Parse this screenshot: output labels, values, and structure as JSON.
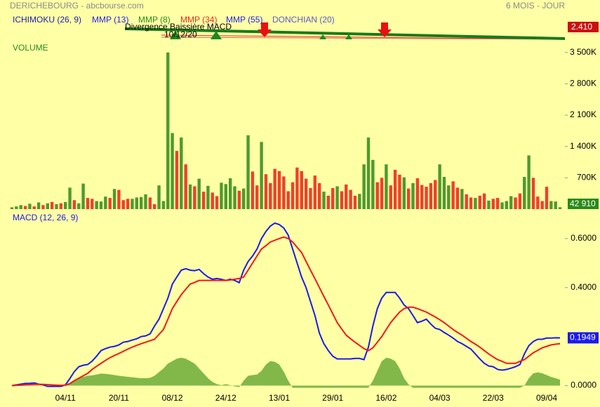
{
  "header": {
    "title": "DERICHEBOURG - abcbourse.com",
    "period": "6 MOIS - JOUR",
    "indicators": [
      {
        "label": "ICHIMOKU (26, 9)",
        "color": "#1c1cb0"
      },
      {
        "label": "MMP (13)",
        "color": "#2222ee"
      },
      {
        "label": "MMP (8)",
        "color": "#2a8a1a"
      },
      {
        "label": "MMP (34)",
        "color": "#e03020"
      },
      {
        "label": "MMP (55)",
        "color": "#2222ee"
      },
      {
        "label": "DONCHIAN (20)",
        "color": "#5a5ad0"
      }
    ]
  },
  "price_panel": {
    "annotation": "Divergence Baissière MACD",
    "annotation_date": "10/12/20",
    "last_label": "2.410"
  },
  "chart_data": [
    {
      "type": "bar",
      "title": "VOLUME",
      "values": [
        40000,
        60000,
        90000,
        70000,
        120000,
        60000,
        150000,
        90000,
        130000,
        160000,
        110000,
        130000,
        160000,
        480000,
        200000,
        130000,
        570000,
        250000,
        230000,
        180000,
        170000,
        280000,
        250000,
        450000,
        430000,
        200000,
        230000,
        230000,
        260000,
        270000,
        330000,
        260000,
        110000,
        530000,
        180000,
        3500000,
        1700000,
        1300000,
        1600000,
        1000000,
        550000,
        510000,
        680000,
        390000,
        520000,
        370000,
        290000,
        590000,
        560000,
        690000,
        510000,
        410000,
        460000,
        1650000,
        840000,
        530000,
        1500000,
        780000,
        580000,
        900000,
        850000,
        730000,
        400000,
        600000,
        930000,
        850000,
        680000,
        470000,
        750000,
        580000,
        390000,
        300000,
        470000,
        510000,
        400000,
        550000,
        430000,
        300000,
        340000,
        1000000,
        1600000,
        1100000,
        600000,
        700000,
        1000000,
        530000,
        880000,
        770000,
        710000,
        460000,
        580000,
        690000,
        540000,
        500000,
        580000,
        650000,
        1000000,
        720000,
        530000,
        620000,
        480000,
        450000,
        330000,
        260000,
        250000,
        300000,
        350000,
        190000,
        230000,
        250000,
        150000,
        180000,
        290000,
        260000,
        350000,
        720000,
        1200000,
        700000,
        280000,
        180000,
        500000,
        180000,
        170000,
        42910
      ],
      "colors": [
        "#4e9a2e",
        "#4e9a2e",
        "#4e9a2e",
        "#f0402c",
        "#4e9a2e",
        "#f0402c",
        "#4e9a2e",
        "#f0402c",
        "#4e9a2e",
        "#f0402c",
        "#4e9a2e",
        "#f0402c",
        "#4e9a2e",
        "#4e9a2e",
        "#f0402c",
        "#4e9a2e",
        "#4e9a2e",
        "#f0402c",
        "#f0402c",
        "#4e9a2e",
        "#4e9a2e",
        "#4e9a2e",
        "#f0402c",
        "#4e9a2e",
        "#f0402c",
        "#f0402c",
        "#f0402c",
        "#4e9a2e",
        "#4e9a2e",
        "#4e9a2e",
        "#4e9a2e",
        "#f0402c",
        "#f0402c",
        "#4e9a2e",
        "#4e9a2e",
        "#4e9a2e",
        "#4e9a2e",
        "#f0402c",
        "#4e9a2e",
        "#f0402c",
        "#4e9a2e",
        "#f0402c",
        "#4e9a2e",
        "#f0402c",
        "#4e9a2e",
        "#f0402c",
        "#f0402c",
        "#4e9a2e",
        "#4e9a2e",
        "#4e9a2e",
        "#4e9a2e",
        "#f0402c",
        "#4e9a2e",
        "#4e9a2e",
        "#f0402c",
        "#f0402c",
        "#4e9a2e",
        "#f0402c",
        "#f0402c",
        "#f0402c",
        "#f0402c",
        "#f0402c",
        "#f0402c",
        "#f0402c",
        "#f0402c",
        "#f0402c",
        "#f0402c",
        "#f0402c",
        "#f0402c",
        "#f0402c",
        "#4e9a2e",
        "#f0402c",
        "#f0402c",
        "#4e9a2e",
        "#f0402c",
        "#f0402c",
        "#f0402c",
        "#f0402c",
        "#4e9a2e",
        "#4e9a2e",
        "#4e9a2e",
        "#4e9a2e",
        "#f0402c",
        "#f0402c",
        "#4e9a2e",
        "#f0402c",
        "#f0402c",
        "#f0402c",
        "#4e9a2e",
        "#f0402c",
        "#4e9a2e",
        "#f0402c",
        "#f0402c",
        "#f0402c",
        "#f0402c",
        "#f0402c",
        "#4e9a2e",
        "#4e9a2e",
        "#4e9a2e",
        "#f0402c",
        "#f0402c",
        "#4e9a2e",
        "#f0402c",
        "#f0402c",
        "#4e9a2e",
        "#f0402c",
        "#f0402c",
        "#4e9a2e",
        "#f0402c",
        "#f0402c",
        "#4e9a2e",
        "#4e9a2e",
        "#4e9a2e",
        "#f0402c",
        "#f0402c",
        "#4e9a2e",
        "#4e9a2e",
        "#f0402c",
        "#f0402c",
        "#f0402c",
        "#f0402c",
        "#4e9a2e",
        "#4e9a2e",
        "#4e9a2e"
      ],
      "ylim": [
        0,
        3700000
      ],
      "yticks": [
        {
          "value": 700000,
          "label": "700K"
        },
        {
          "value": 1400000,
          "label": "1 400K"
        },
        {
          "value": 2100000,
          "label": "2 100K"
        },
        {
          "value": 2800000,
          "label": "2 800K"
        },
        {
          "value": 3500000,
          "label": "3 500K"
        }
      ],
      "last_label": "42 910",
      "last_color": "#2a8a1a"
    },
    {
      "type": "line",
      "title": "MACD (12, 26, 9)",
      "categories": [
        null,
        null,
        null,
        null,
        null,
        null,
        null,
        null,
        null,
        null,
        null,
        null,
        "04/11",
        null,
        null,
        null,
        null,
        null,
        null,
        null,
        null,
        null,
        null,
        null,
        "20/11",
        null,
        null,
        null,
        null,
        null,
        null,
        null,
        null,
        null,
        null,
        null,
        "08/12",
        null,
        null,
        null,
        null,
        null,
        null,
        null,
        null,
        null,
        null,
        null,
        "24/12",
        null,
        null,
        null,
        null,
        null,
        null,
        null,
        null,
        null,
        null,
        null,
        "13/01",
        null,
        null,
        null,
        null,
        null,
        null,
        null,
        null,
        null,
        null,
        null,
        "29/01",
        null,
        null,
        null,
        null,
        null,
        null,
        null,
        null,
        null,
        null,
        null,
        "16/02",
        null,
        null,
        null,
        null,
        null,
        null,
        null,
        null,
        null,
        null,
        null,
        "04/03",
        null,
        null,
        null,
        null,
        null,
        null,
        null,
        null,
        null,
        null,
        null,
        "22/03",
        null,
        null,
        null,
        null,
        null,
        null,
        null,
        null,
        null,
        null,
        null,
        "09/04",
        null,
        null,
        null
      ],
      "series": [
        {
          "color": "#1a1aee",
          "values": [
            0,
            0.003,
            0.006,
            0.009,
            0.009,
            0.011,
            0.006,
            0.003,
            -0.003,
            -0.003,
            -0.003,
            -0.003,
            0.003,
            0.029,
            0.057,
            0.077,
            0.083,
            0.086,
            0.1,
            0.12,
            0.143,
            0.151,
            0.157,
            0.16,
            0.166,
            0.177,
            0.18,
            0.186,
            0.191,
            0.2,
            0.203,
            0.211,
            0.243,
            0.271,
            0.314,
            0.357,
            0.414,
            0.443,
            0.471,
            0.477,
            0.471,
            0.469,
            0.474,
            0.457,
            0.443,
            0.434,
            0.437,
            0.434,
            0.429,
            0.434,
            0.429,
            0.42,
            0.471,
            0.506,
            0.529,
            0.557,
            0.6,
            0.629,
            0.651,
            0.663,
            0.657,
            0.643,
            0.614,
            0.557,
            0.5,
            0.443,
            0.4,
            0.343,
            0.286,
            0.214,
            0.171,
            0.143,
            0.12,
            0.109,
            0.109,
            0.109,
            0.109,
            0.111,
            0.111,
            0.106,
            0.157,
            0.243,
            0.314,
            0.357,
            0.38,
            0.38,
            0.38,
            0.357,
            0.329,
            0.314,
            0.286,
            0.257,
            0.263,
            0.271,
            0.251,
            0.234,
            0.229,
            0.217,
            0.206,
            0.194,
            0.18,
            0.171,
            0.16,
            0.149,
            0.129,
            0.109,
            0.091,
            0.08,
            0.077,
            0.066,
            0.063,
            0.066,
            0.071,
            0.077,
            0.086,
            0.129,
            0.163,
            0.18,
            0.189,
            0.189,
            0.194,
            0.194,
            0.195,
            0.1949
          ],
          "last_label": "0.1949"
        },
        {
          "color": "#ee1a1a",
          "values": [
            0,
            0.001,
            0.002,
            0.003,
            0.004,
            0.005,
            0.005,
            0.005,
            0.004,
            0.003,
            0.002,
            0.001,
            0.002,
            0.008,
            0.02,
            0.03,
            0.04,
            0.05,
            0.066,
            0.079,
            0.091,
            0.103,
            0.114,
            0.123,
            0.131,
            0.14,
            0.149,
            0.157,
            0.164,
            0.171,
            0.177,
            0.183,
            0.189,
            0.209,
            0.229,
            0.271,
            0.314,
            0.343,
            0.371,
            0.393,
            0.414,
            0.421,
            0.429,
            0.429,
            0.429,
            0.429,
            0.429,
            0.429,
            0.429,
            0.431,
            0.434,
            0.437,
            0.443,
            0.471,
            0.5,
            0.529,
            0.557,
            0.571,
            0.586,
            0.593,
            0.6,
            0.606,
            0.6,
            0.586,
            0.564,
            0.543,
            0.507,
            0.471,
            0.436,
            0.4,
            0.364,
            0.329,
            0.293,
            0.257,
            0.231,
            0.206,
            0.191,
            0.177,
            0.164,
            0.151,
            0.143,
            0.154,
            0.177,
            0.2,
            0.229,
            0.257,
            0.279,
            0.3,
            0.314,
            0.32,
            0.32,
            0.314,
            0.307,
            0.3,
            0.29,
            0.28,
            0.269,
            0.257,
            0.243,
            0.229,
            0.217,
            0.206,
            0.193,
            0.18,
            0.169,
            0.157,
            0.143,
            0.129,
            0.117,
            0.106,
            0.099,
            0.091,
            0.091,
            0.091,
            0.099,
            0.106,
            0.12,
            0.134,
            0.144,
            0.154,
            0.16,
            0.166,
            0.169,
            0.171
          ]
        },
        {
          "color": "#82b84a",
          "kind": "area",
          "values": [
            0.002,
            0.003,
            0.004,
            0.004,
            0.003,
            0.002,
            0.001,
            0,
            -0.003,
            -0.004,
            -0.004,
            -0.003,
            0,
            0.01,
            0.02,
            0.03,
            0.036,
            0.04,
            0.042,
            0.045,
            0.049,
            0.048,
            0.046,
            0.043,
            0.04,
            0.038,
            0.036,
            0.034,
            0.032,
            0.03,
            0.03,
            0.032,
            0.04,
            0.055,
            0.07,
            0.09,
            0.1,
            0.11,
            0.114,
            0.11,
            0.1,
            0.09,
            0.07,
            0.05,
            0.03,
            0.015,
            0.006,
            0.002,
            0.006,
            0.002,
            -0.003,
            -0.006,
            0.02,
            0.04,
            0.043,
            0.045,
            0.06,
            0.086,
            0.1,
            0.097,
            0.086,
            0.057,
            0.02,
            -0.009,
            -0.009,
            -0.009,
            -0.009,
            -0.009,
            -0.009,
            -0.009,
            -0.009,
            -0.009,
            -0.009,
            -0.009,
            -0.009,
            -0.009,
            -0.009,
            -0.009,
            -0.009,
            -0.009,
            -0.009,
            0.02,
            0.06,
            0.1,
            0.114,
            0.11,
            0.1,
            0.07,
            0.03,
            0.005,
            -0.009,
            -0.009,
            -0.009,
            -0.009,
            -0.009,
            -0.009,
            -0.009,
            -0.009,
            -0.009,
            -0.009,
            -0.009,
            -0.009,
            -0.009,
            -0.009,
            -0.009,
            -0.009,
            -0.009,
            -0.009,
            -0.009,
            -0.009,
            -0.009,
            -0.009,
            -0.009,
            -0.009,
            -0.009,
            0,
            0.03,
            0.05,
            0.054,
            0.05,
            0.043,
            0.035,
            0.03,
            0.024
          ]
        }
      ],
      "ylim": [
        -0.03,
        0.7
      ],
      "yticks": [
        {
          "value": 0,
          "label": "0.0000"
        },
        {
          "value": 0.4,
          "label": "0.4000"
        },
        {
          "value": 0.6,
          "label": "0.6000"
        }
      ]
    }
  ]
}
